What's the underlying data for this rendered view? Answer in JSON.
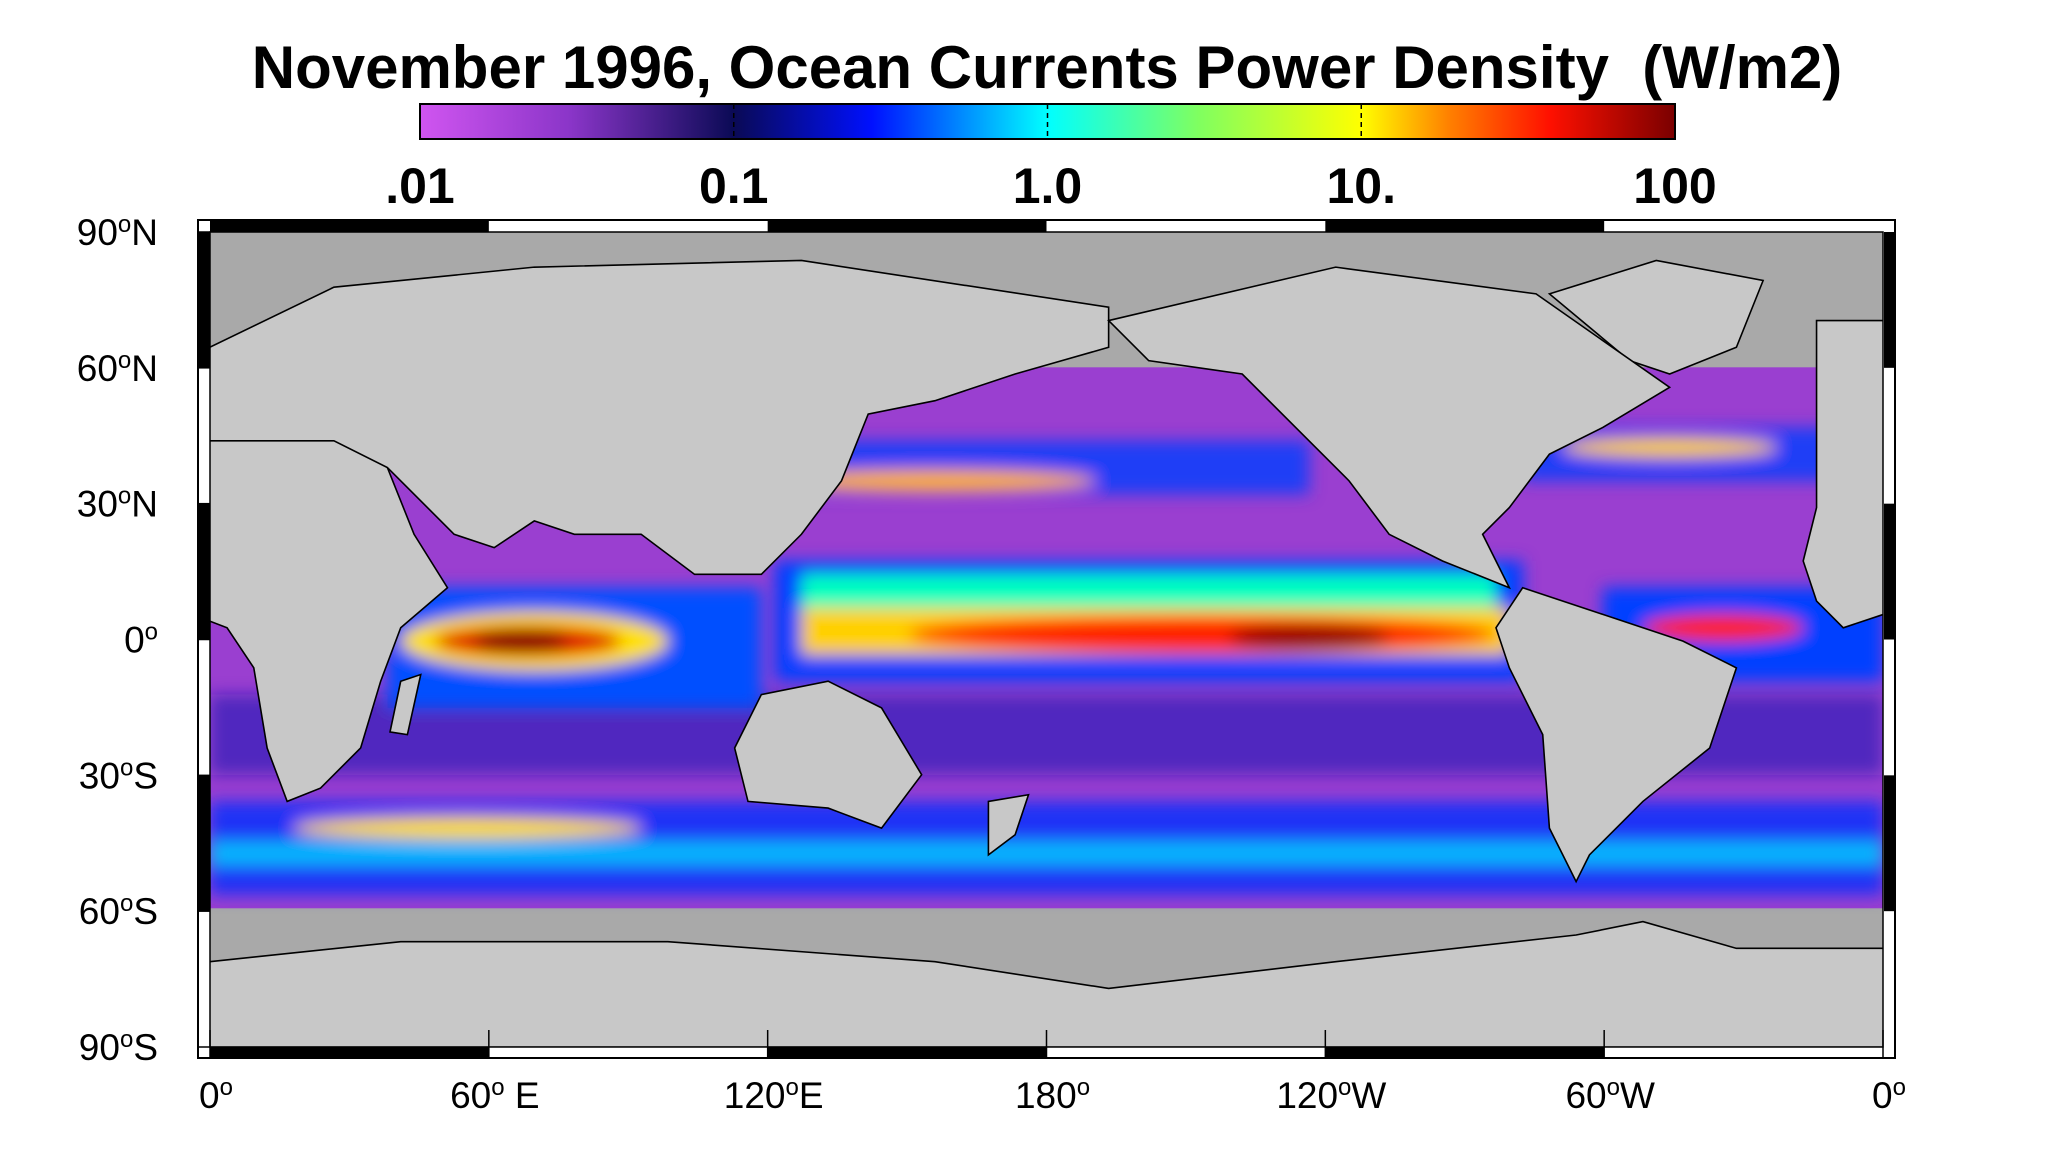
{
  "map": {
    "title": "November 1996, Ocean Currents Power Density  (W/m2)",
    "colorbar": {
      "clim": [
        0.01,
        100
      ],
      "log": true,
      "ticks": [
        {
          "value": 0.01,
          "label": ".01"
        },
        0.1,
        {
          "value": 1,
          "label": "1.0"
        },
        {
          "value": 10,
          "label": "10."
        },
        100
      ]
    },
    "lat_axis": {
      "lim": [
        -90,
        90
      ],
      "ticks": [
        {
          "value": 90,
          "label": [
            "90",
            "o",
            "N"
          ]
        },
        {
          "value": 60,
          "label": [
            "60",
            "o",
            "N"
          ]
        },
        {
          "value": 30,
          "label": [
            "30",
            "o",
            "N"
          ]
        },
        {
          "value": 0,
          "label": [
            "0",
            "o"
          ]
        },
        {
          "value": -30,
          "label": [
            "30",
            "o",
            "S"
          ]
        },
        {
          "value": -60,
          "label": [
            "60",
            "o",
            "S"
          ]
        },
        {
          "value": -90,
          "label": [
            "90",
            "o",
            "S"
          ]
        }
      ]
    },
    "lon_axis": {
      "lim": [
        0,
        360
      ],
      "ticks": [
        {
          "value": 0,
          "label": [
            "0",
            "o"
          ]
        },
        {
          "value": 60,
          "label": [
            "60",
            "o",
            " E"
          ]
        },
        {
          "value": 120,
          "label": [
            "120",
            "o",
            "E"
          ]
        },
        {
          "value": 180,
          "label": [
            "180",
            "o"
          ]
        },
        {
          "value": 240,
          "label": [
            "120",
            "o",
            "W"
          ]
        },
        {
          "value": 300,
          "label": [
            "60",
            "o",
            "W"
          ]
        },
        {
          "value": 360,
          "label": [
            "0",
            "o"
          ]
        }
      ]
    }
  }
}
